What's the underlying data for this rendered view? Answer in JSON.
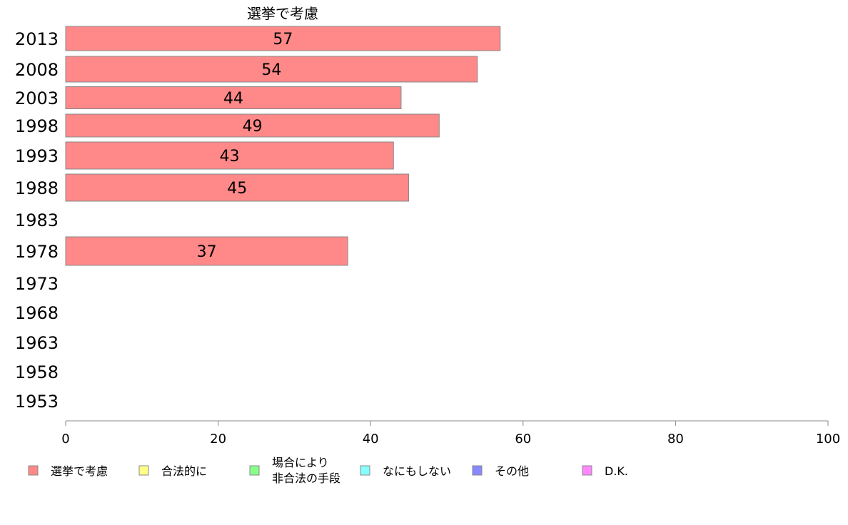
{
  "chart_data": {
    "type": "bar",
    "orientation": "horizontal",
    "title": "選挙で考慮",
    "categories": [
      "2013",
      "2008",
      "2003",
      "1998",
      "1993",
      "1988",
      "1983",
      "1978",
      "1973",
      "1968",
      "1963",
      "1958",
      "1953"
    ],
    "series": [
      {
        "name": "選挙で考慮",
        "color": "#ff8888",
        "values": [
          57,
          54,
          44,
          49,
          43,
          45,
          null,
          37,
          null,
          null,
          null,
          null,
          null
        ]
      }
    ],
    "xlim": [
      0,
      100
    ],
    "xticks": [
      "0",
      "20",
      "40",
      "60",
      "80",
      "100"
    ],
    "xlabel": "",
    "ylabel": "",
    "grid": false,
    "legend_position": "bottom",
    "legend": [
      {
        "label": "選挙で考慮",
        "color": "#ff8888"
      },
      {
        "label": "合法的に",
        "color": "#ffff88"
      },
      {
        "label": "場合により\n非合法の手段",
        "color": "#88ff88"
      },
      {
        "label": "なにもしない",
        "color": "#88ffff"
      },
      {
        "label": "その他",
        "color": "#8888ff"
      },
      {
        "label": "D.K.",
        "color": "#ff88ff"
      }
    ]
  }
}
